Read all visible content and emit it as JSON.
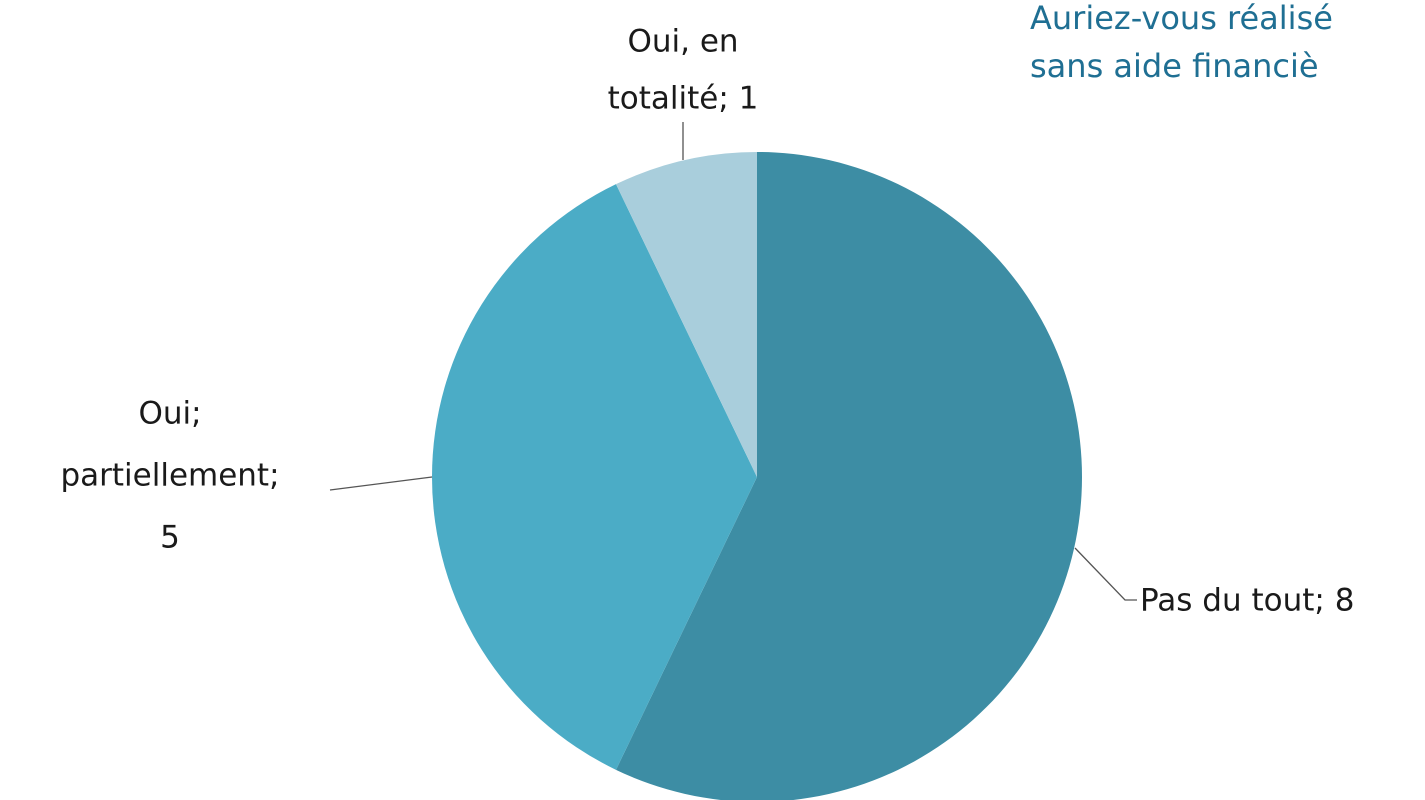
{
  "chart_data": {
    "type": "pie",
    "title_lines": [
      "Auriez-vous réalisé",
      "sans aide financiè"
    ],
    "values": [
      8,
      5,
      1
    ],
    "value_labels": [
      [
        "Pas du tout; 8"
      ],
      [
        "Oui;",
        "partiellement;",
        "5"
      ],
      [
        "Oui, en",
        "totalité; 1"
      ]
    ],
    "colors": [
      "#3d8da4",
      "#4bacc6",
      "#a9cedc"
    ]
  }
}
